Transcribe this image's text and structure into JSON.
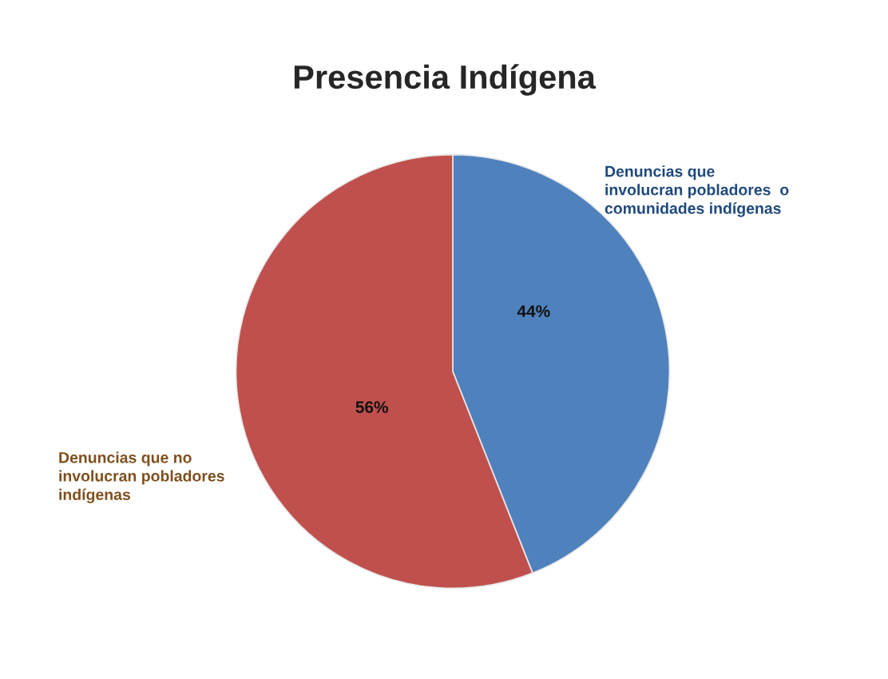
{
  "chart_data": {
    "type": "pie",
    "title": "Presencia Indígena",
    "categories": [
      "Denuncias que\ninvolucran pobladores  o\ncomunidades indígenas",
      "Denuncias que no\ninvolucran pobladores\nindígenas"
    ],
    "values": [
      44,
      56
    ],
    "colors": [
      "#4f81bd",
      "#c0504d"
    ],
    "value_labels": [
      "44%",
      "56%"
    ]
  }
}
